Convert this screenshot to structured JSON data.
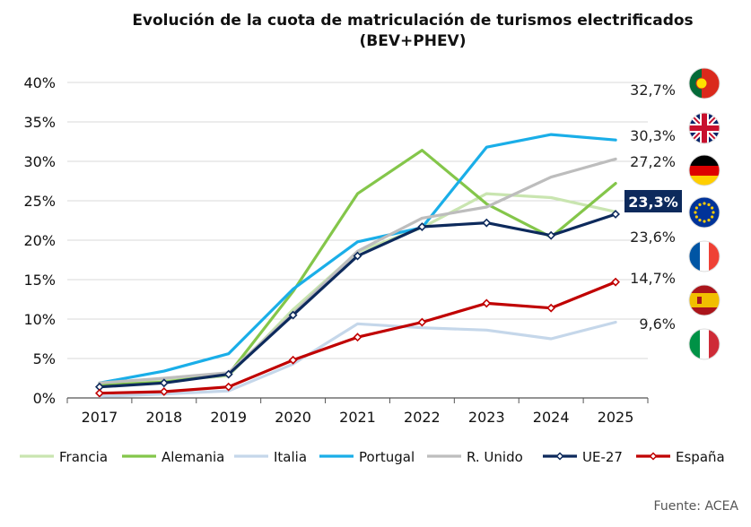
{
  "title_line1": "Evolución de la cuota de matriculación de turismos electrificados",
  "title_line2": "(BEV+PHEV)",
  "source": "Fuente: ACEA",
  "chart_data": {
    "type": "line",
    "title": "Evolución de la cuota de matriculación de turismos electrificados (BEV+PHEV)",
    "x": [
      "2017",
      "2018",
      "2019",
      "2020",
      "2021",
      "2022",
      "2023",
      "2024",
      "2025"
    ],
    "ylim": [
      0,
      40
    ],
    "yticks": [
      "0%",
      "5%",
      "10%",
      "15%",
      "20%",
      "25%",
      "30%",
      "35%",
      "40%"
    ],
    "grid": "horizontal",
    "legend": "bottom",
    "series": [
      {
        "name": "Francia",
        "color": "#c9e5b0",
        "values": [
          1.9,
          2.2,
          2.8,
          11.2,
          18.5,
          21.6,
          25.9,
          25.4,
          23.6
        ],
        "end_label": "23,6%"
      },
      {
        "name": "Alemania",
        "color": "#84c64a",
        "values": [
          1.6,
          2.0,
          3.0,
          13.5,
          25.9,
          31.4,
          24.6,
          20.4,
          27.2
        ],
        "end_label": "27,2%"
      },
      {
        "name": "Italia",
        "color": "#c5d7ea",
        "values": [
          0.2,
          0.5,
          0.9,
          4.3,
          9.4,
          8.9,
          8.6,
          7.5,
          9.6
        ],
        "end_label": "9,6%"
      },
      {
        "name": "Portugal",
        "color": "#1aaee8",
        "values": [
          1.9,
          3.4,
          5.6,
          13.8,
          19.8,
          21.6,
          31.8,
          33.4,
          32.7
        ],
        "end_label": "32,7%"
      },
      {
        "name": "R. Unido",
        "color": "#bdbdbd",
        "values": [
          1.9,
          2.5,
          3.2,
          10.7,
          18.6,
          22.8,
          24.2,
          28.0,
          30.3
        ],
        "end_label": "30,3%"
      },
      {
        "name": "UE-27",
        "color": "#0d2a5c",
        "values": [
          1.4,
          1.9,
          3.0,
          10.5,
          18.0,
          21.7,
          22.2,
          20.6,
          23.3
        ],
        "end_label": "23,3%",
        "markers": true,
        "highlight": true
      },
      {
        "name": "España",
        "color": "#c00000",
        "values": [
          0.6,
          0.8,
          1.4,
          4.8,
          7.7,
          9.6,
          12.0,
          11.4,
          14.7
        ],
        "end_label": "14,7%",
        "markers": true
      }
    ],
    "end_label_order": [
      "Portugal",
      "R. Unido",
      "Alemania",
      "UE-27",
      "Francia",
      "España",
      "Italia"
    ],
    "flags": [
      "portugal-flag-icon",
      "united-kingdom-flag-icon",
      "germany-flag-icon",
      "eu-flag-icon",
      "france-flag-icon",
      "spain-flag-icon",
      "italy-flag-icon"
    ]
  }
}
